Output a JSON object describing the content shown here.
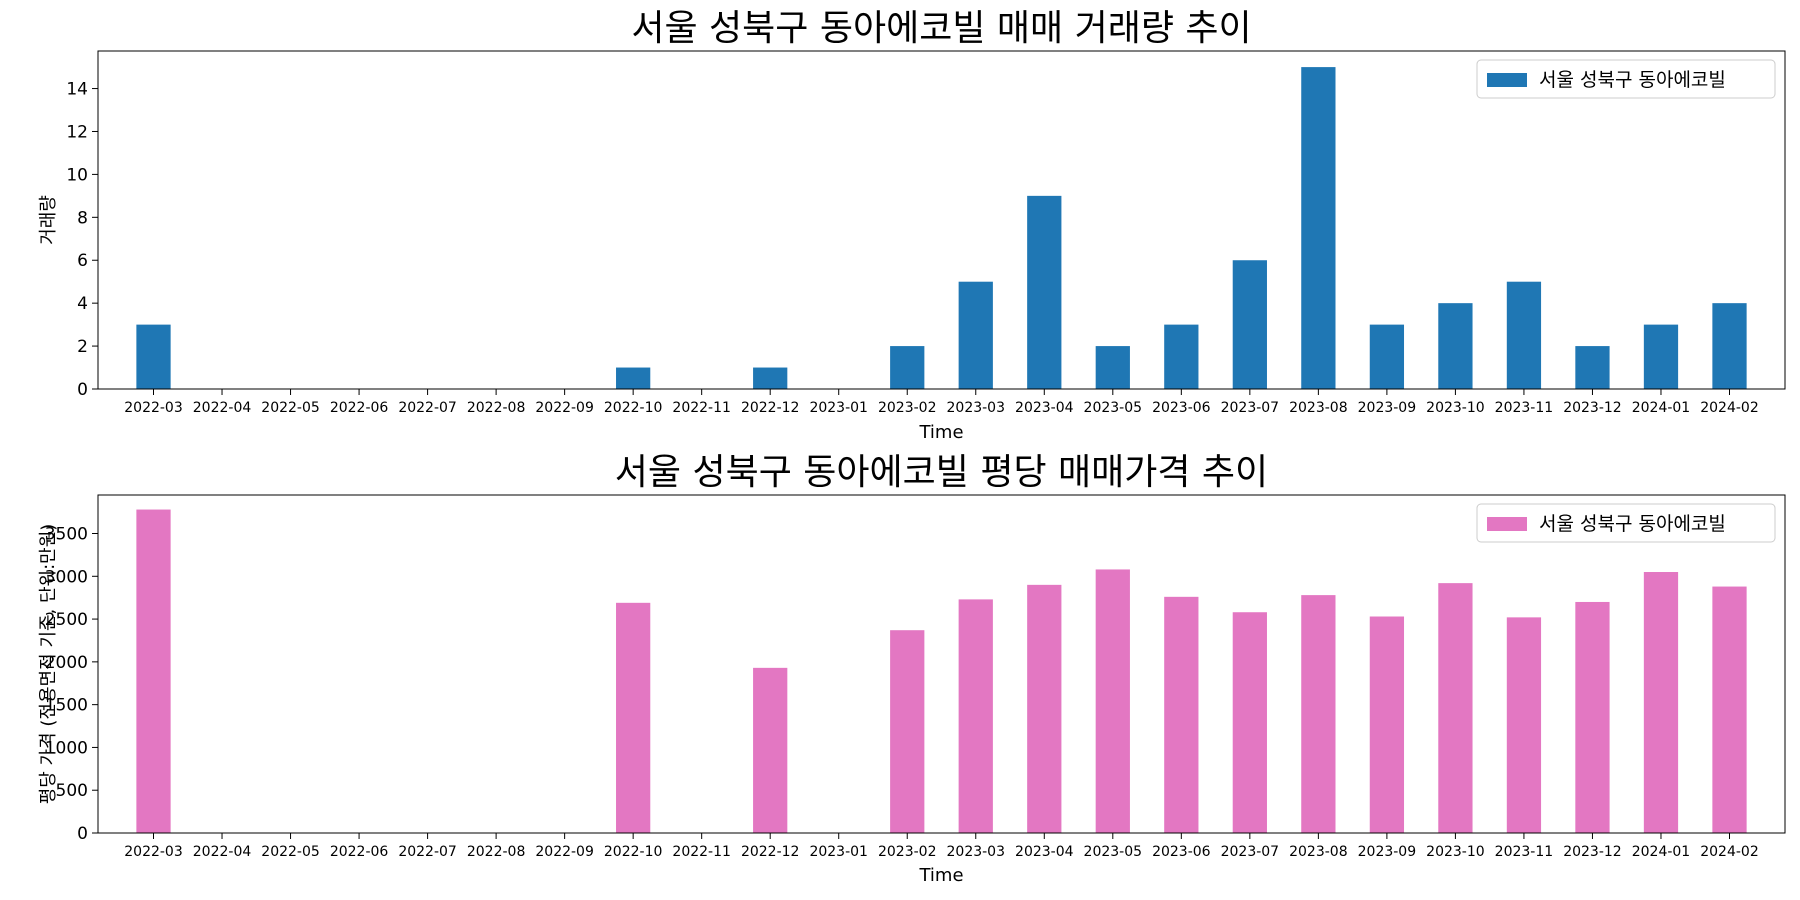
{
  "chart_data": [
    {
      "type": "bar",
      "title": "서울 성북구 동아에코빌 매매 거래량 추이",
      "xlabel": "Time",
      "ylabel": "거래량",
      "legend_position": "top-right",
      "grid": false,
      "ylim": [
        0,
        15.75
      ],
      "yticks": [
        0,
        2,
        4,
        6,
        8,
        10,
        12,
        14
      ],
      "categories": [
        "2022-03",
        "2022-04",
        "2022-05",
        "2022-06",
        "2022-07",
        "2022-08",
        "2022-09",
        "2022-10",
        "2022-11",
        "2022-12",
        "2023-01",
        "2023-02",
        "2023-03",
        "2023-04",
        "2023-05",
        "2023-06",
        "2023-07",
        "2023-08",
        "2023-09",
        "2023-10",
        "2023-11",
        "2023-12",
        "2024-01",
        "2024-02"
      ],
      "series": [
        {
          "name": "서울 성북구 동아에코빌",
          "color": "#1f77b4",
          "values": [
            3,
            0,
            0,
            0,
            0,
            0,
            0,
            1,
            0,
            1,
            0,
            2,
            5,
            9,
            2,
            3,
            6,
            15,
            3,
            4,
            5,
            2,
            3,
            4
          ]
        }
      ]
    },
    {
      "type": "bar",
      "title": "서울 성북구 동아에코빌 평당 매매가격 추이",
      "xlabel": "Time",
      "ylabel": "평당 가격 (전용면적 기준, 단위:만원)",
      "legend_position": "top-right",
      "grid": false,
      "ylim": [
        0,
        3950
      ],
      "yticks": [
        0,
        500,
        1000,
        1500,
        2000,
        2500,
        3000,
        3500
      ],
      "categories": [
        "2022-03",
        "2022-04",
        "2022-05",
        "2022-06",
        "2022-07",
        "2022-08",
        "2022-09",
        "2022-10",
        "2022-11",
        "2022-12",
        "2023-01",
        "2023-02",
        "2023-03",
        "2023-04",
        "2023-05",
        "2023-06",
        "2023-07",
        "2023-08",
        "2023-09",
        "2023-10",
        "2023-11",
        "2023-12",
        "2024-01",
        "2024-02"
      ],
      "series": [
        {
          "name": "서울 성북구 동아에코빌",
          "color": "#e377c2",
          "values": [
            3780,
            0,
            0,
            0,
            0,
            0,
            0,
            2690,
            0,
            1930,
            0,
            2370,
            2730,
            2900,
            3080,
            2760,
            2580,
            2780,
            2530,
            2920,
            2520,
            2700,
            3050,
            2880
          ]
        }
      ]
    }
  ]
}
